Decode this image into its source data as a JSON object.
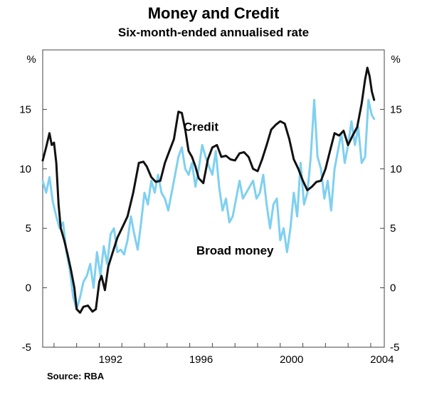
{
  "chart_data": {
    "type": "line",
    "title": "Money and Credit",
    "subtitle": "Six-month-ended annualised rate",
    "source": "Source: RBA",
    "unit_left": "%",
    "unit_right": "%",
    "xlim": [
      1989.5,
      2004.6
    ],
    "ylim": [
      -5,
      20
    ],
    "yticks": [
      -5,
      0,
      5,
      10,
      15
    ],
    "ytick_labels": [
      "-5",
      "0",
      "5",
      "10",
      "15"
    ],
    "xticks": [
      1992,
      1996,
      2000,
      2004
    ],
    "xtick_labels": [
      "1992",
      "1996",
      "2000",
      "2004"
    ],
    "grid": false,
    "legend": "annotations on chart",
    "colors": {
      "credit": "#111111",
      "broad_money": "#7fd0f0"
    },
    "series": [
      {
        "name": "Credit",
        "label_pos": [
          1996.5,
          13.2
        ],
        "x": [
          1989.5,
          1989.65,
          1989.8,
          1989.9,
          1990.0,
          1990.1,
          1990.2,
          1990.3,
          1990.45,
          1990.6,
          1990.75,
          1990.9,
          1991.0,
          1991.15,
          1991.3,
          1991.5,
          1991.7,
          1991.85,
          1992.0,
          1992.1,
          1992.25,
          1992.4,
          1992.6,
          1992.8,
          1993.0,
          1993.25,
          1993.5,
          1993.75,
          1993.95,
          1994.1,
          1994.3,
          1994.5,
          1994.7,
          1994.9,
          1995.1,
          1995.3,
          1995.5,
          1995.65,
          1995.8,
          1995.95,
          1996.1,
          1996.25,
          1996.4,
          1996.6,
          1996.8,
          1997.0,
          1997.2,
          1997.4,
          1997.6,
          1997.8,
          1998.0,
          1998.2,
          1998.4,
          1998.6,
          1998.8,
          1999.0,
          1999.2,
          1999.4,
          1999.6,
          1999.8,
          2000.0,
          2000.2,
          2000.4,
          2000.6,
          2000.8,
          2001.0,
          2001.2,
          2001.4,
          2001.6,
          2001.8,
          2002.0,
          2002.2,
          2002.4,
          2002.6,
          2002.8,
          2003.0,
          2003.2,
          2003.4,
          2003.6,
          2003.75,
          2003.85,
          2003.95,
          2004.05,
          2004.15
        ],
        "values": [
          10.7,
          11.8,
          13.0,
          12.0,
          12.2,
          10.5,
          7.0,
          5.0,
          4.0,
          2.8,
          1.5,
          0.0,
          -1.8,
          -2.1,
          -1.6,
          -1.5,
          -2.0,
          -1.8,
          0.5,
          1.0,
          -0.2,
          1.8,
          3.0,
          4.2,
          5.0,
          6.0,
          8.0,
          10.5,
          10.6,
          10.2,
          9.3,
          8.9,
          9.0,
          10.5,
          11.5,
          12.5,
          14.8,
          14.7,
          13.3,
          11.5,
          11.0,
          10.2,
          9.2,
          8.8,
          10.8,
          11.8,
          12.0,
          11.0,
          11.1,
          10.8,
          10.7,
          11.3,
          11.4,
          11.0,
          10.0,
          9.8,
          10.8,
          12.0,
          13.3,
          13.7,
          14.0,
          13.8,
          12.5,
          10.8,
          10.0,
          9.0,
          8.2,
          8.5,
          8.9,
          9.0,
          10.0,
          11.5,
          13.0,
          12.8,
          13.2,
          12.0,
          12.8,
          13.5,
          15.5,
          17.5,
          18.5,
          17.8,
          16.5,
          15.8
        ]
      },
      {
        "name": "Broad money",
        "label_pos": [
          1998.0,
          2.8
        ],
        "x": [
          1989.5,
          1989.65,
          1989.8,
          1989.95,
          1990.1,
          1990.25,
          1990.4,
          1990.55,
          1990.7,
          1990.85,
          1991.0,
          1991.15,
          1991.3,
          1991.45,
          1991.6,
          1991.75,
          1991.9,
          1992.05,
          1992.2,
          1992.35,
          1992.5,
          1992.65,
          1992.8,
          1992.95,
          1993.1,
          1993.25,
          1993.4,
          1993.55,
          1993.7,
          1993.85,
          1994.0,
          1994.15,
          1994.3,
          1994.45,
          1994.6,
          1994.75,
          1994.9,
          1995.05,
          1995.2,
          1995.35,
          1995.5,
          1995.65,
          1995.8,
          1995.95,
          1996.1,
          1996.25,
          1996.4,
          1996.55,
          1996.7,
          1996.85,
          1997.0,
          1997.15,
          1997.3,
          1997.45,
          1997.6,
          1997.75,
          1997.9,
          1998.05,
          1998.2,
          1998.35,
          1998.5,
          1998.65,
          1998.8,
          1998.95,
          1999.1,
          1999.25,
          1999.4,
          1999.55,
          1999.7,
          1999.85,
          2000.0,
          2000.15,
          2000.3,
          2000.45,
          2000.6,
          2000.75,
          2000.9,
          2001.05,
          2001.2,
          2001.35,
          2001.5,
          2001.65,
          2001.8,
          2001.95,
          2002.1,
          2002.25,
          2002.4,
          2002.55,
          2002.7,
          2002.85,
          2003.0,
          2003.15,
          2003.3,
          2003.45,
          2003.6,
          2003.75,
          2003.9,
          2004.05,
          2004.15
        ],
        "values": [
          9.0,
          8.0,
          9.3,
          7.2,
          6.0,
          5.0,
          5.5,
          3.0,
          1.5,
          -0.8,
          -1.8,
          -0.8,
          0.5,
          1.0,
          2.0,
          0.0,
          3.0,
          1.0,
          3.5,
          2.0,
          4.5,
          5.0,
          3.0,
          3.2,
          2.8,
          4.0,
          6.0,
          4.5,
          3.2,
          5.5,
          8.0,
          7.0,
          9.0,
          8.0,
          9.5,
          8.0,
          7.5,
          6.5,
          8.0,
          9.5,
          11.0,
          11.8,
          10.0,
          9.5,
          10.5,
          8.5,
          10.0,
          12.0,
          11.0,
          10.2,
          9.5,
          11.5,
          8.5,
          6.5,
          7.5,
          5.5,
          6.0,
          7.5,
          9.0,
          7.5,
          8.0,
          8.5,
          9.0,
          7.5,
          8.0,
          9.5,
          7.0,
          5.0,
          7.0,
          7.5,
          4.0,
          5.0,
          3.0,
          5.0,
          8.0,
          6.0,
          10.5,
          7.0,
          8.0,
          11.0,
          15.8,
          11.0,
          10.0,
          7.5,
          9.0,
          6.5,
          10.0,
          11.5,
          13.0,
          10.5,
          12.0,
          14.0,
          12.0,
          13.5,
          10.5,
          11.0,
          15.8,
          14.5,
          14.2
        ]
      }
    ]
  }
}
